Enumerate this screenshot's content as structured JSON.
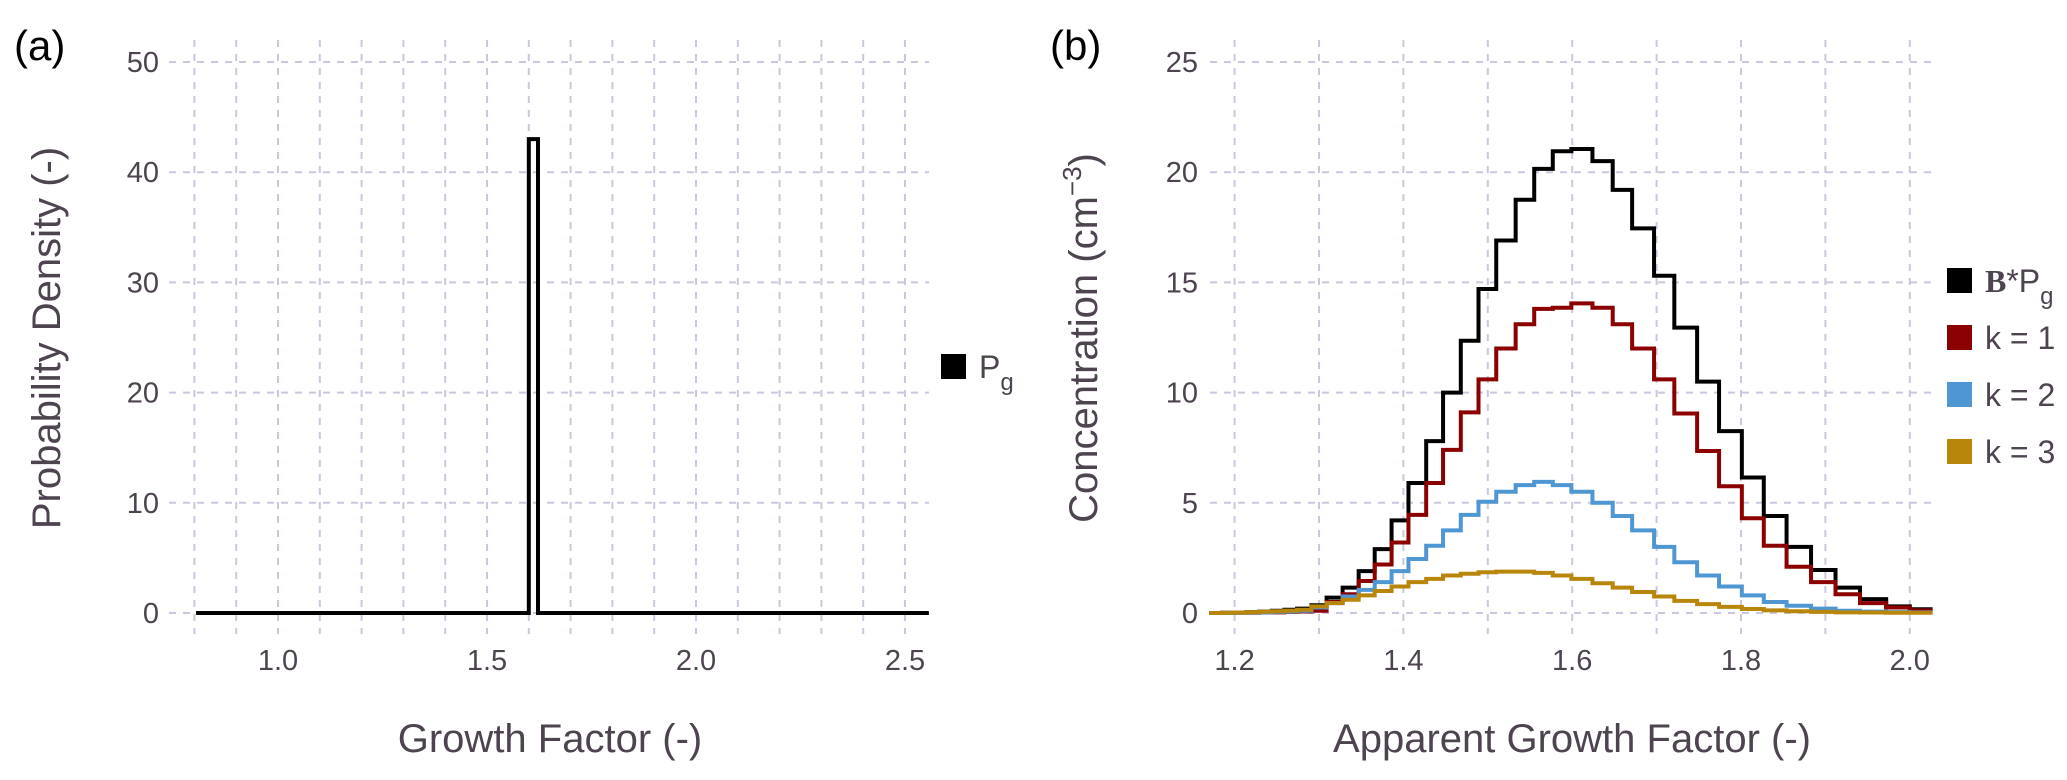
{
  "chart_data": [
    {
      "panel_label": "(a)",
      "type": "step-histogram",
      "xlabel": "Growth Factor (-)",
      "ylabel": "Probability Density (-)",
      "xlim": [
        0.8,
        2.55
      ],
      "ylim": [
        0,
        50
      ],
      "xticks": [
        1.0,
        1.5,
        2.0,
        2.5
      ],
      "xtick_labels": [
        "1.0",
        "1.5",
        "2.0",
        "2.5"
      ],
      "yticks": [
        0,
        10,
        20,
        30,
        40,
        50
      ],
      "ytick_labels": [
        "0",
        "10",
        "20",
        "30",
        "40",
        "50"
      ],
      "grid": true,
      "legend_position": "right",
      "series": [
        {
          "name": "P_g",
          "legend_main": "P",
          "legend_sub": "g",
          "color": "#000000",
          "edges": [
            0.804,
            1.6,
            1.622,
            2.557
          ],
          "values": [
            0,
            43,
            0
          ]
        }
      ]
    },
    {
      "panel_label": "(b)",
      "type": "step-histogram",
      "xlabel": "Apparent Growth Factor (-)",
      "ylabel_main": "Concentration (cm",
      "ylabel_sup": "−3",
      "ylabel_end": ")",
      "xlim": [
        1.17,
        2.03
      ],
      "ylim": [
        0,
        25
      ],
      "xticks": [
        1.2,
        1.4,
        1.6,
        1.8,
        2.0
      ],
      "xtick_labels": [
        "1.2",
        "1.4",
        "1.6",
        "1.8",
        "2.0"
      ],
      "yticks": [
        0,
        5,
        10,
        15,
        20,
        25
      ],
      "ytick_labels": [
        "0",
        "5",
        "10",
        "15",
        "20",
        "25"
      ],
      "grid": true,
      "legend_position": "right",
      "edges": [
        1.17,
        1.185,
        1.2,
        1.214,
        1.229,
        1.244,
        1.259,
        1.274,
        1.291,
        1.309,
        1.328,
        1.347,
        1.366,
        1.386,
        1.406,
        1.427,
        1.447,
        1.468,
        1.489,
        1.51,
        1.533,
        1.555,
        1.577,
        1.599,
        1.624,
        1.648,
        1.671,
        1.697,
        1.721,
        1.748,
        1.774,
        1.801,
        1.827,
        1.854,
        1.883,
        1.912,
        1.941,
        1.972,
        2.0,
        2.027
      ],
      "series": [
        {
          "name": "B*P_g",
          "legend_bold": "B",
          "legend_main": "*P",
          "legend_sub": "g",
          "color": "#000000",
          "values": [
            0,
            0.01,
            0.02,
            0.04,
            0.07,
            0.1,
            0.15,
            0.2,
            0.35,
            0.7,
            1.15,
            1.9,
            2.9,
            4.2,
            5.9,
            7.8,
            10.0,
            12.35,
            14.7,
            16.9,
            18.75,
            20.15,
            20.95,
            21.05,
            20.5,
            19.2,
            17.45,
            15.3,
            12.95,
            10.5,
            8.25,
            6.15,
            4.4,
            3.0,
            1.95,
            1.15,
            0.63,
            0.3,
            0.17
          ]
        },
        {
          "name": "k = 1",
          "legend_main": "k = 1",
          "color": "#8b0000",
          "values": [
            0,
            0,
            0.01,
            0.01,
            0.02,
            0.03,
            0.05,
            0.07,
            0.1,
            0.5,
            0.85,
            1.45,
            2.2,
            3.2,
            4.45,
            5.9,
            7.4,
            9.1,
            10.6,
            12.0,
            13.1,
            13.8,
            13.85,
            14.05,
            13.85,
            13.1,
            12.0,
            10.6,
            9.05,
            7.35,
            5.75,
            4.3,
            3.05,
            2.1,
            1.4,
            0.85,
            0.45,
            0.25,
            0.12
          ]
        },
        {
          "name": "k = 2",
          "legend_main": "k = 2",
          "color": "#4f97d3",
          "values": [
            0,
            0,
            0.01,
            0.02,
            0.03,
            0.05,
            0.07,
            0.1,
            0.25,
            0.45,
            0.75,
            1.05,
            1.4,
            1.9,
            2.45,
            3.05,
            3.75,
            4.45,
            5.05,
            5.5,
            5.8,
            5.95,
            5.8,
            5.5,
            5.0,
            4.4,
            3.75,
            3.0,
            2.3,
            1.7,
            1.2,
            0.8,
            0.5,
            0.33,
            0.2,
            0.1,
            0.06,
            0.04,
            0.03
          ]
        },
        {
          "name": "k = 3",
          "legend_main": "k = 3",
          "color": "#b8860b",
          "values": [
            0,
            0.01,
            0.02,
            0.04,
            0.06,
            0.08,
            0.11,
            0.15,
            0.3,
            0.45,
            0.6,
            0.8,
            1.0,
            1.2,
            1.4,
            1.55,
            1.7,
            1.78,
            1.85,
            1.88,
            1.88,
            1.82,
            1.7,
            1.55,
            1.35,
            1.15,
            0.95,
            0.75,
            0.55,
            0.4,
            0.28,
            0.18,
            0.12,
            0.08,
            0.05,
            0.03,
            0.02,
            0.01,
            0.01
          ]
        }
      ]
    }
  ]
}
